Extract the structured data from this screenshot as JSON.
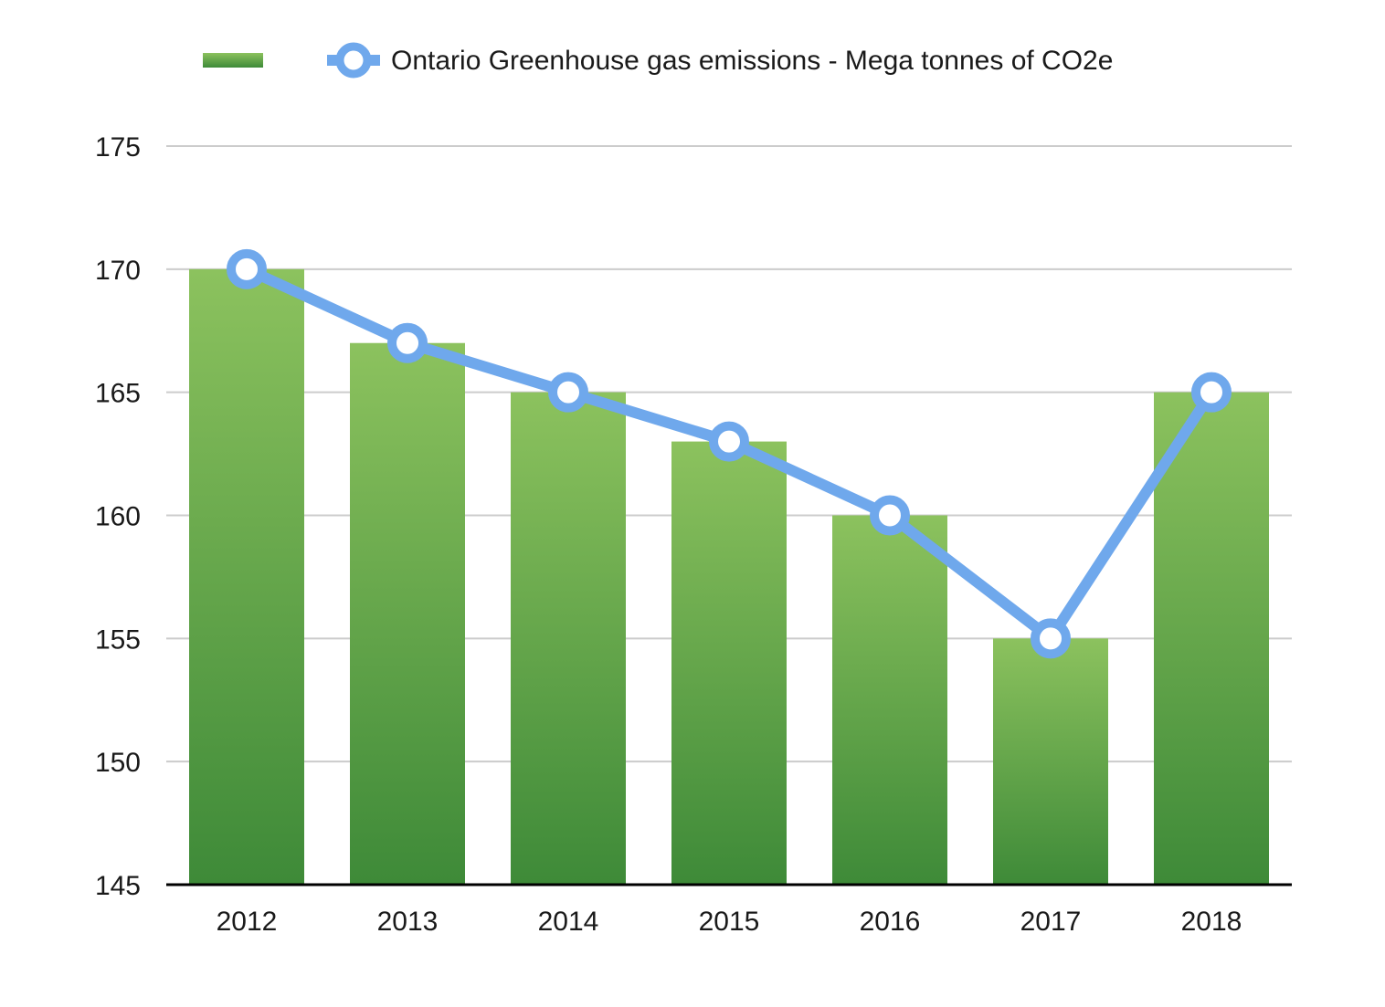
{
  "chart_data": {
    "type": "bar",
    "title": "",
    "xlabel": "",
    "ylabel": "",
    "categories": [
      "2012",
      "2013",
      "2014",
      "2015",
      "2016",
      "2017",
      "2018"
    ],
    "series": [
      {
        "name": "",
        "type": "bar",
        "values": [
          170,
          167,
          165,
          163,
          160,
          155,
          165
        ],
        "color": "#6aa84f"
      },
      {
        "name": "Ontario Greenhouse gas emissions - Mega tonnes of CO2e",
        "type": "line",
        "values": [
          170,
          167,
          165,
          163,
          160,
          155,
          165
        ],
        "color": "#6fa8ec"
      }
    ],
    "ylim": [
      145,
      175
    ],
    "yticks": [
      "145",
      "150",
      "155",
      "160",
      "165",
      "170",
      "175"
    ],
    "grid": true,
    "legend": "top"
  }
}
